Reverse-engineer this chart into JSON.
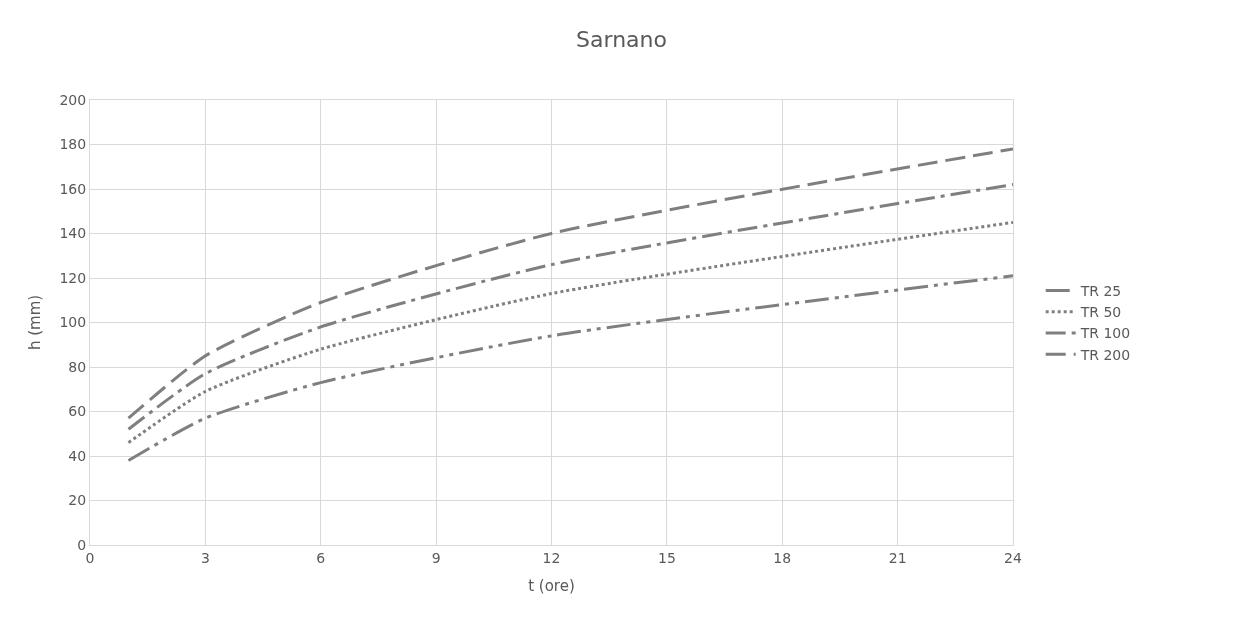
{
  "chart_data": {
    "type": "line",
    "title": "Sarnano",
    "xlabel": "t (ore)",
    "ylabel": "h (mm)",
    "x": [
      1,
      3,
      6,
      12,
      24
    ],
    "series": [
      {
        "name": "TR 25",
        "color": "#7f7f7f",
        "line_style": "dashdotdot",
        "values": [
          38,
          57,
          73,
          94,
          121
        ]
      },
      {
        "name": "TR 50",
        "color": "#7f7f7f",
        "line_style": "dotted",
        "values": [
          46,
          69,
          88,
          113,
          145
        ]
      },
      {
        "name": "TR 100",
        "color": "#7f7f7f",
        "line_style": "dashdot",
        "values": [
          52,
          77,
          98,
          126,
          162
        ]
      },
      {
        "name": "TR 200",
        "color": "#7f7f7f",
        "line_style": "dashed",
        "values": [
          57,
          85,
          109,
          140,
          178
        ]
      }
    ],
    "xlim": [
      0,
      24
    ],
    "xticks": [
      0,
      3,
      6,
      9,
      12,
      15,
      18,
      21,
      24
    ],
    "ylim": [
      0,
      200
    ],
    "yticks": [
      0,
      20,
      40,
      60,
      80,
      100,
      120,
      140,
      160,
      180,
      200
    ],
    "grid": true,
    "legend": "right",
    "marker": "none"
  }
}
